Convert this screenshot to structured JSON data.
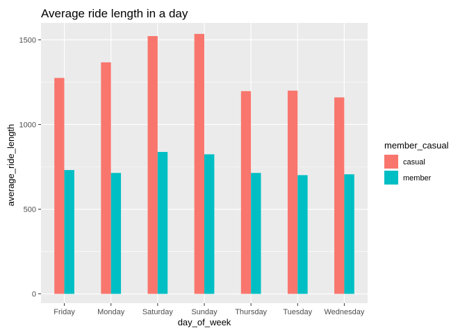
{
  "chart_data": {
    "type": "bar",
    "title": "Average ride length in a day",
    "xlabel": "day_of_week",
    "ylabel": "average_ride_length",
    "categories": [
      "Friday",
      "Monday",
      "Saturday",
      "Sunday",
      "Thursday",
      "Tuesday",
      "Wednesday"
    ],
    "series": [
      {
        "name": "casual",
        "color": "#F8766D",
        "values": [
          1275,
          1367,
          1522,
          1535,
          1197,
          1200,
          1160
        ]
      },
      {
        "name": "member",
        "color": "#00BFC4",
        "values": [
          731,
          714,
          838,
          824,
          714,
          701,
          706
        ]
      }
    ],
    "ylim": [
      -55,
      1600
    ],
    "yticks": [
      0,
      500,
      1000,
      1500
    ],
    "yticklabels": [
      "0",
      "500",
      "1000",
      "1500"
    ],
    "grid": true,
    "legend": {
      "title": "member_casual",
      "position": "right"
    },
    "panel_background": "#EBEBEB"
  }
}
